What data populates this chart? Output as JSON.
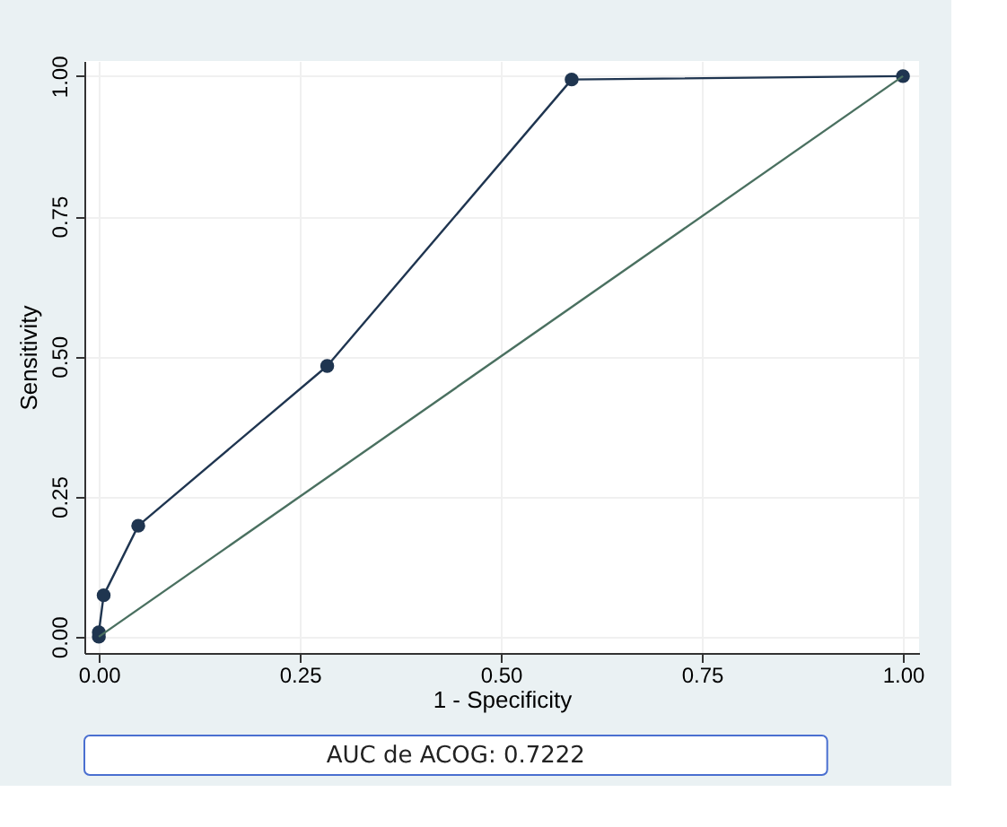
{
  "chart_data": {
    "type": "line",
    "xlabel": "1 - Specificity",
    "ylabel": "Sensitivity",
    "annotations": [
      "AUC de ACOG: 0.7222"
    ],
    "series": [
      {
        "color": "#1f3550",
        "x": [
          0,
          0,
          0.006,
          0.049,
          0.284,
          0.588,
          1
        ],
        "values": [
          0,
          0.008,
          0.074,
          0.198,
          0.483,
          0.994,
          1
        ],
        "marker": "circle"
      },
      {
        "color": "#4a7060",
        "x": [
          0,
          1
        ],
        "values": [
          0,
          1
        ],
        "marker": "none"
      }
    ],
    "xlim": [
      -0.018,
      1.02
    ],
    "ylim": [
      -0.029,
      1.027
    ],
    "xticks": [
      {
        "value": 0,
        "label": "0.00"
      },
      {
        "value": 0.25,
        "label": "0.25"
      },
      {
        "value": 0.5,
        "label": "0.50"
      },
      {
        "value": 0.75,
        "label": "0.75"
      },
      {
        "value": 1,
        "label": "1.00"
      }
    ],
    "yticks": [
      {
        "value": 0,
        "label": "0.00"
      },
      {
        "value": 0.25,
        "label": "0.25"
      },
      {
        "value": 0.5,
        "label": "0.50"
      },
      {
        "value": 0.75,
        "label": "0.75"
      },
      {
        "value": 1,
        "label": "1.00"
      }
    ],
    "grid": true
  }
}
